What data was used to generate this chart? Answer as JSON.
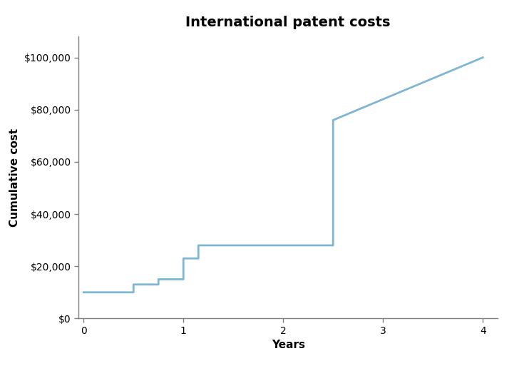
{
  "title": "International patent costs",
  "xlabel": "Years",
  "ylabel": "Cumulative cost",
  "line_color": "#7EB6D4",
  "line_width": 2.0,
  "background_color": "#FFFFFF",
  "x_data": [
    0,
    0.5,
    0.5,
    0.75,
    0.75,
    1.0,
    1.0,
    1.15,
    1.15,
    2.5,
    2.5,
    4.0
  ],
  "y_data": [
    10000,
    10000,
    13000,
    13000,
    15000,
    15000,
    23000,
    23000,
    28000,
    28000,
    76000,
    100000
  ],
  "xlim": [
    -0.05,
    4.15
  ],
  "ylim": [
    0,
    108000
  ],
  "xticks": [
    0,
    1,
    2,
    3,
    4
  ],
  "yticks": [
    0,
    20000,
    40000,
    60000,
    80000,
    100000
  ],
  "ytick_labels": [
    "$0",
    "$20,000",
    "$40,000",
    "$60,000",
    "$80,000",
    "$100,000"
  ],
  "title_fontsize": 14,
  "axis_label_fontsize": 11,
  "tick_fontsize": 10,
  "spine_color": "#808080",
  "tick_color": "#808080"
}
